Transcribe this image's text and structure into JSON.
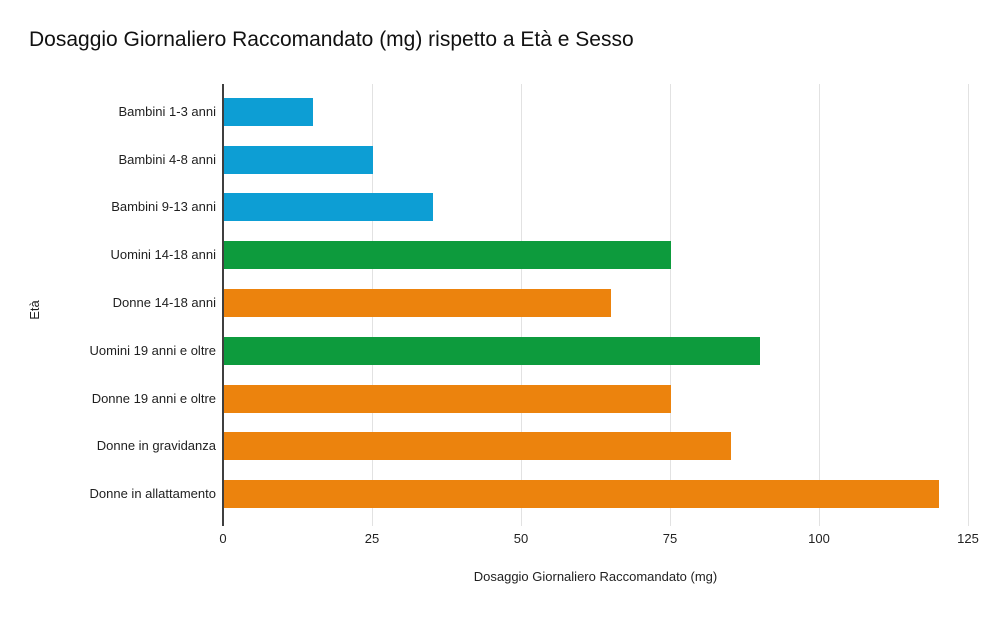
{
  "chart_data": {
    "type": "bar",
    "orientation": "horizontal",
    "title": "Dosaggio Giornaliero Raccomandato (mg) rispetto a Età e Sesso",
    "xlabel": "Dosaggio Giornaliero Raccomandato (mg)",
    "ylabel": "Età",
    "categories": [
      "Bambini 1-3 anni",
      "Bambini 4-8 anni",
      "Bambini 9-13 anni",
      "Uomini 14-18 anni",
      "Donne 14-18 anni",
      "Uomini 19 anni e oltre",
      "Donne 19 anni e oltre",
      "Donne in gravidanza",
      "Donne in allattamento"
    ],
    "values": [
      15,
      25,
      35,
      75,
      65,
      90,
      75,
      85,
      120
    ],
    "bar_colors": [
      "#0d9ed4",
      "#0d9ed4",
      "#0d9ed4",
      "#0d9b3d",
      "#ec830d",
      "#0d9b3d",
      "#ec830d",
      "#ec830d",
      "#ec830d"
    ],
    "color_legend": {
      "blue": "#0d9ed4",
      "green": "#0d9b3d",
      "orange": "#ec830d"
    },
    "xlim": [
      0,
      125
    ],
    "xticks": [
      0,
      25,
      50,
      75,
      100,
      125
    ],
    "grid": true,
    "legend": false
  },
  "colors": {
    "background": "#ffffff",
    "gridline": "#e2e2e2",
    "axis_line": "#3f3f3f",
    "text": "#1f1f1f"
  }
}
